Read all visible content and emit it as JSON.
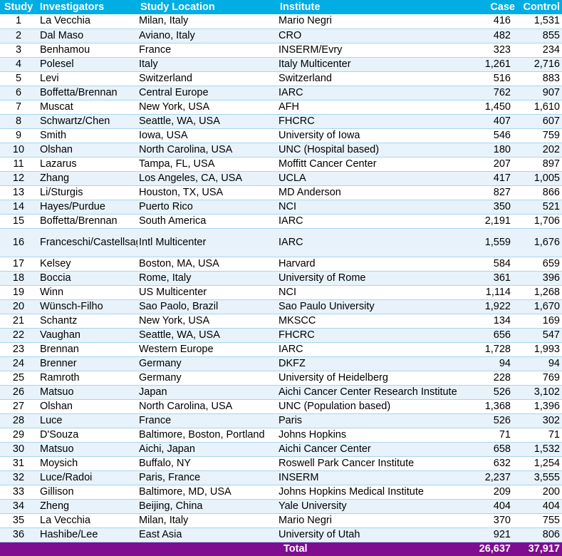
{
  "headers": {
    "study": "Study",
    "investigators": "Investigators",
    "location": "Study Location",
    "institute": "Institute",
    "case": "Case",
    "control": "Control"
  },
  "rows": [
    {
      "study": "1",
      "investigators": "La Vecchia",
      "location": "Milan, Italy",
      "institute": "Mario Negri",
      "case": "416",
      "control": "1,531"
    },
    {
      "study": "2",
      "investigators": "Dal Maso",
      "location": "Aviano, Italy",
      "institute": "CRO",
      "case": "482",
      "control": "855"
    },
    {
      "study": "3",
      "investigators": "Benhamou",
      "location": "France",
      "institute": "INSERM/Evry",
      "case": "323",
      "control": "234"
    },
    {
      "study": "4",
      "investigators": "Polesel",
      "location": "Italy",
      "institute": "Italy Multicenter",
      "case": "1,261",
      "control": "2,716"
    },
    {
      "study": "5",
      "investigators": "Levi",
      "location": "Switzerland",
      "institute": "Switzerland",
      "case": "516",
      "control": "883"
    },
    {
      "study": "6",
      "investigators": "Boffetta/Brennan",
      "location": "Central Europe",
      "institute": "IARC",
      "case": "762",
      "control": "907"
    },
    {
      "study": "7",
      "investigators": "Muscat",
      "location": "New York, USA",
      "institute": "AFH",
      "case": "1,450",
      "control": "1,610"
    },
    {
      "study": "8",
      "investigators": "Schwartz/Chen",
      "location": "Seattle, WA, USA",
      "institute": "FHCRC",
      "case": "407",
      "control": "607"
    },
    {
      "study": "9",
      "investigators": "Smith",
      "location": "Iowa, USA",
      "institute": "University of Iowa",
      "case": "546",
      "control": "759"
    },
    {
      "study": "10",
      "investigators": "Olshan",
      "location": "North Carolina, USA",
      "institute": "UNC (Hospital based)",
      "case": "180",
      "control": "202"
    },
    {
      "study": "11",
      "investigators": "Lazarus",
      "location": "Tampa, FL, USA",
      "institute": "Moffitt Cancer Center",
      "case": "207",
      "control": "897"
    },
    {
      "study": "12",
      "investigators": "Zhang",
      "location": "Los Angeles, CA, USA",
      "institute": "UCLA",
      "case": "417",
      "control": "1,005"
    },
    {
      "study": "13",
      "investigators": "Li/Sturgis",
      "location": "Houston, TX, USA",
      "institute": "MD Anderson",
      "case": "827",
      "control": "866"
    },
    {
      "study": "14",
      "investigators": "Hayes/Purdue",
      "location": "Puerto Rico",
      "institute": "NCI",
      "case": "350",
      "control": "521"
    },
    {
      "study": "15",
      "investigators": "Boffetta/Brennan",
      "location": "South America",
      "institute": "IARC",
      "case": "2,191",
      "control": "1,706"
    },
    {
      "study": "16",
      "investigators": "Franceschi/Castellsague/Herrero",
      "location": "Intl Multicenter",
      "institute": "IARC",
      "case": "1,559",
      "control": "1,676"
    },
    {
      "study": "17",
      "investigators": "Kelsey",
      "location": "Boston, MA, USA",
      "institute": "Harvard",
      "case": "584",
      "control": "659"
    },
    {
      "study": "18",
      "investigators": "Boccia",
      "location": "Rome, Italy",
      "institute": "University of Rome",
      "case": "361",
      "control": "396"
    },
    {
      "study": "19",
      "investigators": "Winn",
      "location": "US Multicenter",
      "institute": "NCI",
      "case": "1,114",
      "control": "1,268"
    },
    {
      "study": "20",
      "investigators": "Wünsch-Filho",
      "location": "Sao Paolo, Brazil",
      "institute": "Sao Paulo University",
      "case": "1,922",
      "control": "1,670"
    },
    {
      "study": "21",
      "investigators": "Schantz",
      "location": "New York, USA",
      "institute": "MKSCC",
      "case": "134",
      "control": "169"
    },
    {
      "study": "22",
      "investigators": "Vaughan",
      "location": "Seattle, WA, USA",
      "institute": "FHCRC",
      "case": "656",
      "control": "547"
    },
    {
      "study": "23",
      "investigators": "Brennan",
      "location": "Western Europe",
      "institute": "IARC",
      "case": "1,728",
      "control": "1,993"
    },
    {
      "study": "24",
      "investigators": "Brenner",
      "location": "Germany",
      "institute": "DKFZ",
      "case": "94",
      "control": "94"
    },
    {
      "study": "25",
      "investigators": "Ramroth",
      "location": "Germany",
      "institute": "University of Heidelberg",
      "case": "228",
      "control": "769"
    },
    {
      "study": "26",
      "investigators": "Matsuo",
      "location": "Japan",
      "institute": "Aichi Cancer Center Research Institute",
      "case": "526",
      "control": "3,102"
    },
    {
      "study": "27",
      "investigators": "Olshan",
      "location": "North Carolina, USA",
      "institute": "UNC (Population based)",
      "case": "1,368",
      "control": "1,396"
    },
    {
      "study": "28",
      "investigators": "Luce",
      "location": "France",
      "institute": "Paris",
      "case": "526",
      "control": "302"
    },
    {
      "study": "29",
      "investigators": "D'Souza",
      "location": "Baltimore, Boston, Portland",
      "institute": "Johns Hopkins",
      "case": "71",
      "control": "71"
    },
    {
      "study": "30",
      "investigators": "Matsuo",
      "location": "Aichi, Japan",
      "institute": "Aichi Cancer Center",
      "case": "658",
      "control": "1,532"
    },
    {
      "study": "31",
      "investigators": "Moysich",
      "location": "Buffalo, NY",
      "institute": "Roswell Park Cancer Institute",
      "case": "632",
      "control": "1,254"
    },
    {
      "study": "32",
      "investigators": "Luce/Radoi",
      "location": "Paris, France",
      "institute": "INSERM",
      "case": "2,237",
      "control": "3,555"
    },
    {
      "study": "33",
      "investigators": "Gillison",
      "location": "Baltimore, MD, USA",
      "institute": "Johns Hopkins Medical Institute",
      "case": "209",
      "control": "200"
    },
    {
      "study": "34",
      "investigators": "Zheng",
      "location": "Beijing, China",
      "institute": "Yale University",
      "case": "404",
      "control": "404"
    },
    {
      "study": "35",
      "investigators": "La Vecchia",
      "location": "Milan, Italy",
      "institute": "Mario Negri",
      "case": "370",
      "control": "755"
    },
    {
      "study": "36",
      "investigators": "Hashibe/Lee",
      "location": "East Asia",
      "institute": "University of Utah",
      "case": "921",
      "control": "806"
    }
  ],
  "total": {
    "label": "Total",
    "case": "26,637",
    "control": "37,917"
  }
}
